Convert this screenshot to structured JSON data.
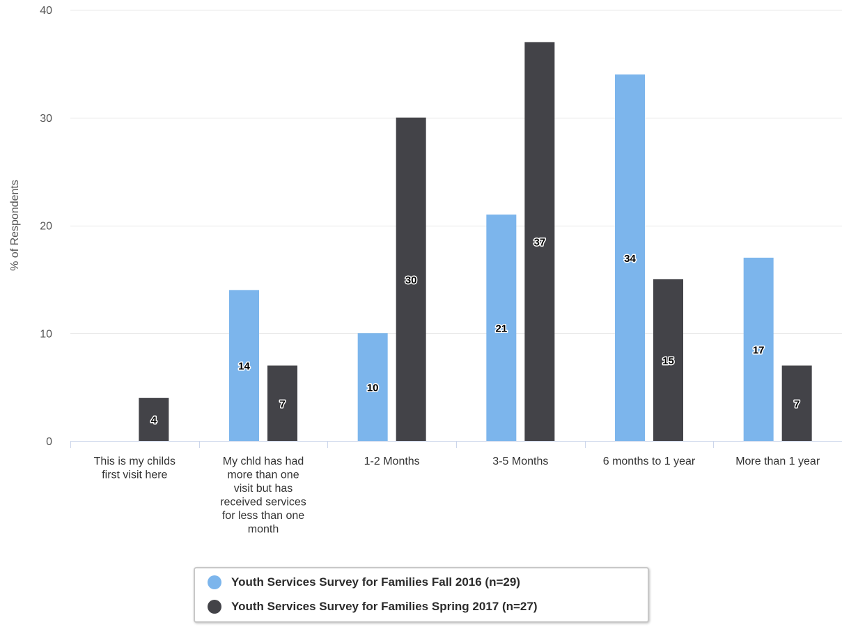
{
  "chart_data": {
    "type": "bar",
    "title": "",
    "xlabel": "",
    "ylabel": "% of Respondents",
    "ylim": [
      0,
      40
    ],
    "yticks": [
      0,
      10,
      20,
      30,
      40
    ],
    "grid": true,
    "legend_position": "bottom",
    "categories": [
      "This is my childs first visit here",
      "My chld has had more than one visit but has received services for less than one month",
      "1-2 Months",
      "3-5 Months",
      "6 months to 1 year",
      "More than 1 year"
    ],
    "category_lines": [
      [
        "This is my childs",
        "first visit here"
      ],
      [
        "My chld has had",
        "more than one",
        "visit but has",
        "received services",
        "for less than one",
        "month"
      ],
      [
        "1-2 Months"
      ],
      [
        "3-5 Months"
      ],
      [
        "6 months to 1 year"
      ],
      [
        "More than 1 year"
      ]
    ],
    "series": [
      {
        "name": "Youth Services Survey for Families Fall 2016 (n=29)",
        "color": "#7cb5ec",
        "values": [
          null,
          14,
          10,
          21,
          34,
          17
        ]
      },
      {
        "name": "Youth Services Survey for Families Spring 2017 (n=27)",
        "color": "#434348",
        "values": [
          4,
          7,
          30,
          37,
          15,
          7
        ]
      }
    ]
  }
}
